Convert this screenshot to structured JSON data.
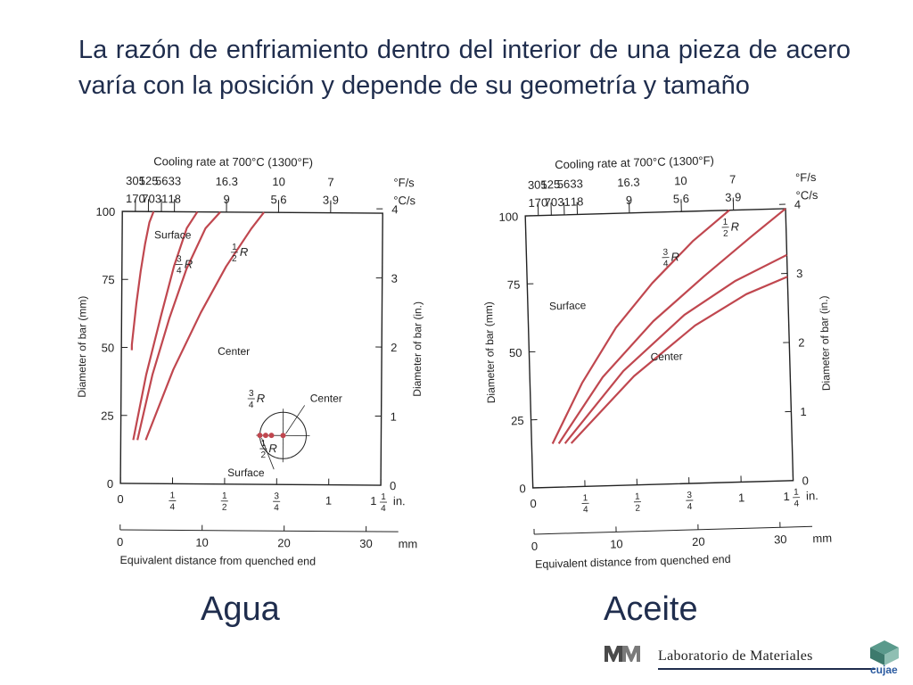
{
  "slide": {
    "heading": "La razón de enfriamiento dentro del interior de una pieza de acero varía con la posición y depende de su geometría y tamaño",
    "caption_water": "Agua",
    "caption_oil": "Aceite",
    "footer_label": "Laboratorio de Materiales",
    "footer_logo_text": "cujae",
    "curve_color": "#c0474f",
    "text_color": "#1f2d4d"
  },
  "chart_data": [
    {
      "type": "line",
      "quench": "Agua",
      "top_axis_title": "Cooling rate at 700°C (1300°F)",
      "top_ticks_F": [
        "305",
        "125",
        "56",
        "33",
        "16.3",
        "10",
        "7"
      ],
      "top_unit_F": "°F/s",
      "top_ticks_C": [
        "170",
        "70",
        "31",
        "18",
        "9",
        "5.6",
        "3.9"
      ],
      "top_unit_C": "°C/s",
      "top_positions_in": [
        0.0625,
        0.125,
        0.1875,
        0.25,
        0.5,
        0.75,
        1.0
      ],
      "ylabel": "Diameter of bar (mm)",
      "ylabel_right": "Diameter of bar (in.)",
      "xlabel": "Equivalent distance from quenched end",
      "x_in_ticks": [
        "0",
        "1/4",
        "1/2",
        "3/4",
        "1",
        "1 1/4"
      ],
      "x_in_unit": "in.",
      "x_mm_ticks": [
        "0",
        "10",
        "20",
        "30"
      ],
      "x_mm_unit": "mm",
      "y_mm_ticks": [
        "0",
        "25",
        "50",
        "75",
        "100"
      ],
      "y_in_ticks": [
        "0",
        "1",
        "2",
        "3",
        "4"
      ],
      "xlim_in": [
        0,
        1.25
      ],
      "ylim_mm": [
        0,
        100
      ],
      "series": [
        {
          "name": "Surface",
          "x": [
            0.05,
            0.05,
            0.07,
            0.09,
            0.11,
            0.13,
            0.15
          ],
          "y": [
            49,
            51,
            66,
            78,
            88,
            96,
            100
          ]
        },
        {
          "name": "3/4 R",
          "x": [
            0.06,
            0.12,
            0.19,
            0.25,
            0.31,
            0.36
          ],
          "y": [
            16,
            40,
            62,
            80,
            94,
            100
          ]
        },
        {
          "name": "Center",
          "x": [
            0.12,
            0.25,
            0.38,
            0.5,
            0.62,
            0.68
          ],
          "y": [
            16,
            42,
            63,
            80,
            94,
            100
          ]
        },
        {
          "name": "1/2 R",
          "x": [
            0.08,
            0.15,
            0.23,
            0.31,
            0.4,
            0.47
          ],
          "y": [
            16,
            40,
            61,
            79,
            94,
            100
          ]
        }
      ],
      "annotations": {
        "label_surface": "Surface",
        "label_half_r": "1/2 R",
        "label_three_quarter_r": "3/4 R",
        "label_center": "Center",
        "inset_three_quarter_r": "3/4 R",
        "inset_half_r": "1/2 R",
        "inset_center": "Center",
        "inset_surface": "Surface"
      }
    },
    {
      "type": "line",
      "quench": "Aceite",
      "top_axis_title": "Cooling rate at 700°C (1300°F)",
      "top_ticks_F": [
        "305",
        "125",
        "56",
        "33",
        "16.3",
        "10",
        "7"
      ],
      "top_unit_F": "°F/s",
      "top_ticks_C": [
        "170",
        "70",
        "31",
        "18",
        "9",
        "5.6",
        "3.9"
      ],
      "top_unit_C": "°C/s",
      "top_positions_in": [
        0.0625,
        0.125,
        0.1875,
        0.25,
        0.5,
        0.75,
        1.0
      ],
      "ylabel": "Diameter of bar (mm)",
      "ylabel_right": "Diameter of bar (in.)",
      "xlabel": "Equivalent distance from quenched end",
      "x_in_ticks": [
        "0",
        "1/4",
        "1/2",
        "3/4",
        "1",
        "1 1/4"
      ],
      "x_in_unit": "in.",
      "x_mm_ticks": [
        "0",
        "10",
        "20",
        "30"
      ],
      "x_mm_unit": "mm",
      "y_mm_ticks": [
        "0",
        "25",
        "50",
        "75",
        "100"
      ],
      "y_in_ticks": [
        "0",
        "1",
        "2",
        "3",
        "4"
      ],
      "xlim_in": [
        0,
        1.25
      ],
      "ylim_mm": [
        0,
        100
      ],
      "series": [
        {
          "name": "Surface",
          "x": [
            0.1,
            0.25,
            0.42,
            0.6,
            0.8,
            0.98
          ],
          "y": [
            16,
            38,
            58,
            74,
            89,
            100
          ]
        },
        {
          "name": "1/2 R",
          "x": [
            0.13,
            0.35,
            0.6,
            0.85,
            1.08,
            1.25
          ],
          "y": [
            16,
            40,
            60,
            76,
            90,
            100
          ]
        },
        {
          "name": "3/4 R",
          "x": [
            0.16,
            0.45,
            0.75,
            1.0,
            1.25
          ],
          "y": [
            16,
            42,
            62,
            74,
            83
          ]
        },
        {
          "name": "Center",
          "x": [
            0.19,
            0.5,
            0.8,
            1.05,
            1.25
          ],
          "y": [
            16,
            40,
            58,
            69,
            75
          ]
        }
      ],
      "annotations": {
        "label_surface": "Surface",
        "label_half_r": "1/2 R",
        "label_three_quarter_r": "3/4 R",
        "label_center": "Center"
      }
    }
  ]
}
